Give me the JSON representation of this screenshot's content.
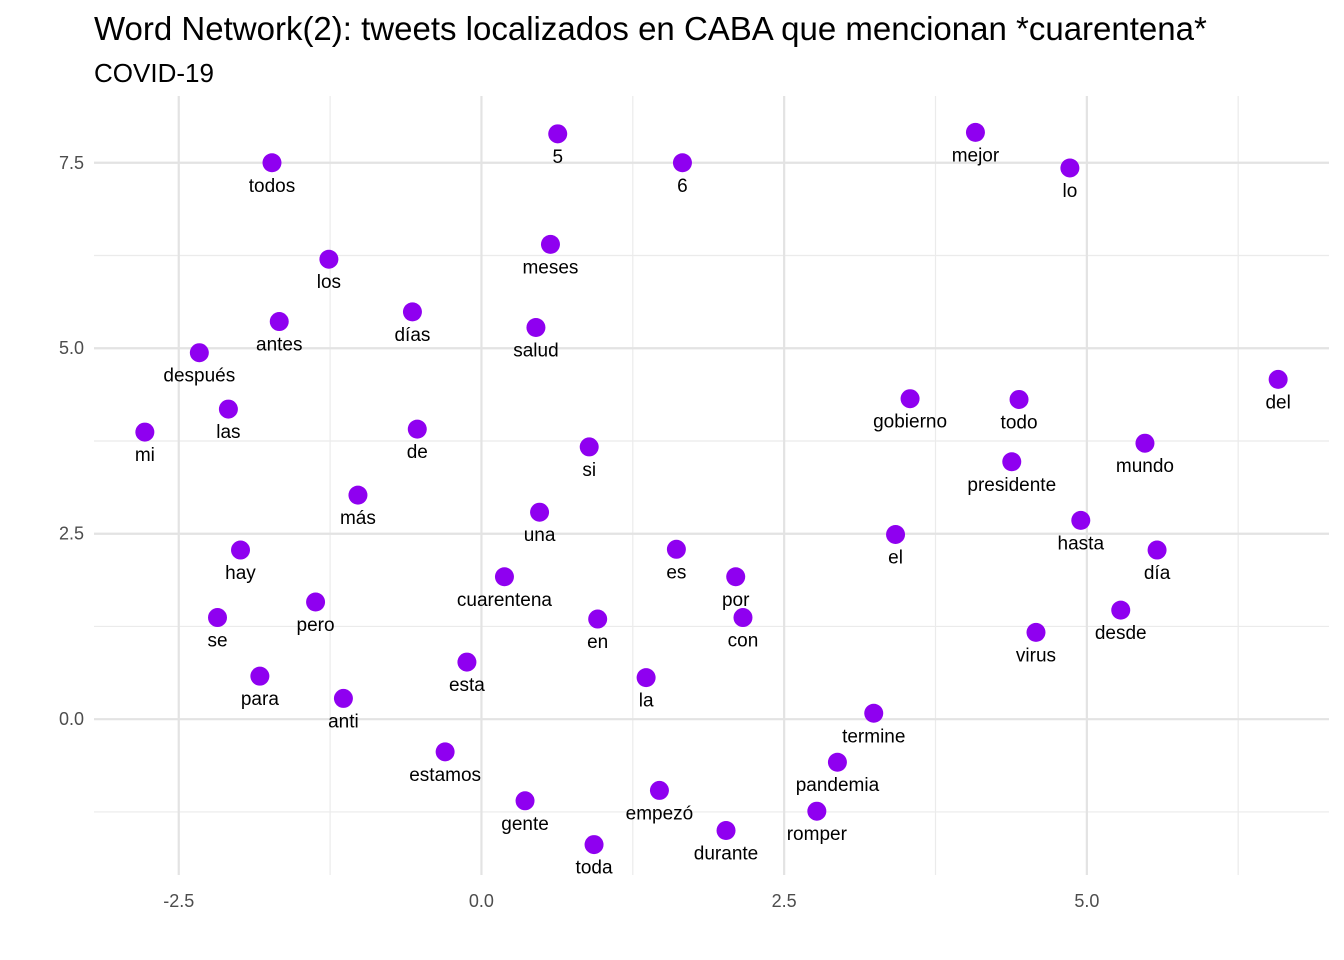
{
  "chart_data": {
    "type": "scatter",
    "title": "Word Network(2): tweets localizados en CABA que mencionan *cuarentena*",
    "subtitle": "COVID-19",
    "xlabel": "",
    "ylabel": "",
    "xlim": [
      -3.2,
      7.0
    ],
    "ylim": [
      -2.1,
      8.4
    ],
    "x_ticks": [
      -2.5,
      0.0,
      2.5,
      5.0
    ],
    "x_tick_labels": [
      "-2.5",
      "0.0",
      "2.5",
      "5.0"
    ],
    "y_ticks": [
      0.0,
      2.5,
      5.0,
      7.5
    ],
    "y_tick_labels": [
      "0.0",
      "2.5",
      "5.0",
      "7.5"
    ],
    "grid": true,
    "point_color": "#8F00F0",
    "points": [
      {
        "label": "todos",
        "x": -1.73,
        "y": 7.5
      },
      {
        "label": "5",
        "x": 0.63,
        "y": 7.89
      },
      {
        "label": "6",
        "x": 1.66,
        "y": 7.5
      },
      {
        "label": "mejor",
        "x": 4.08,
        "y": 7.91
      },
      {
        "label": "lo",
        "x": 4.86,
        "y": 7.43
      },
      {
        "label": "los",
        "x": -1.26,
        "y": 6.2
      },
      {
        "label": "meses",
        "x": 0.57,
        "y": 6.4
      },
      {
        "label": "antes",
        "x": -1.67,
        "y": 5.36
      },
      {
        "label": "días",
        "x": -0.57,
        "y": 5.49
      },
      {
        "label": "salud",
        "x": 0.45,
        "y": 5.28
      },
      {
        "label": "después",
        "x": -2.33,
        "y": 4.94
      },
      {
        "label": "las",
        "x": -2.09,
        "y": 4.18
      },
      {
        "label": "mi",
        "x": -2.78,
        "y": 3.87
      },
      {
        "label": "de",
        "x": -0.53,
        "y": 3.91
      },
      {
        "label": "si",
        "x": 0.89,
        "y": 3.67
      },
      {
        "label": "gobierno",
        "x": 3.54,
        "y": 4.32
      },
      {
        "label": "todo",
        "x": 4.44,
        "y": 4.31
      },
      {
        "label": "del",
        "x": 6.58,
        "y": 4.58
      },
      {
        "label": "mundo",
        "x": 5.48,
        "y": 3.72
      },
      {
        "label": "presidente",
        "x": 4.38,
        "y": 3.47
      },
      {
        "label": "más",
        "x": -1.02,
        "y": 3.02
      },
      {
        "label": "una",
        "x": 0.48,
        "y": 2.79
      },
      {
        "label": "el",
        "x": 3.42,
        "y": 2.49
      },
      {
        "label": "hasta",
        "x": 4.95,
        "y": 2.68
      },
      {
        "label": "hay",
        "x": -1.99,
        "y": 2.28
      },
      {
        "label": "es",
        "x": 1.61,
        "y": 2.29
      },
      {
        "label": "día",
        "x": 5.58,
        "y": 2.28
      },
      {
        "label": "cuarentena",
        "x": 0.19,
        "y": 1.92
      },
      {
        "label": "por",
        "x": 2.1,
        "y": 1.92
      },
      {
        "label": "se",
        "x": -2.18,
        "y": 1.37
      },
      {
        "label": "pero",
        "x": -1.37,
        "y": 1.58
      },
      {
        "label": "en",
        "x": 0.96,
        "y": 1.35
      },
      {
        "label": "con",
        "x": 2.16,
        "y": 1.37
      },
      {
        "label": "desde",
        "x": 5.28,
        "y": 1.47
      },
      {
        "label": "virus",
        "x": 4.58,
        "y": 1.17
      },
      {
        "label": "para",
        "x": -1.83,
        "y": 0.58
      },
      {
        "label": "esta",
        "x": -0.12,
        "y": 0.77
      },
      {
        "label": "anti",
        "x": -1.14,
        "y": 0.28
      },
      {
        "label": "la",
        "x": 1.36,
        "y": 0.56
      },
      {
        "label": "termine",
        "x": 3.24,
        "y": 0.08
      },
      {
        "label": "estamos",
        "x": -0.3,
        "y": -0.44
      },
      {
        "label": "pandemia",
        "x": 2.94,
        "y": -0.58
      },
      {
        "label": "gente",
        "x": 0.36,
        "y": -1.1
      },
      {
        "label": "empezó",
        "x": 1.47,
        "y": -0.96
      },
      {
        "label": "romper",
        "x": 2.77,
        "y": -1.24
      },
      {
        "label": "durante",
        "x": 2.02,
        "y": -1.5
      },
      {
        "label": "toda",
        "x": 0.93,
        "y": -1.69
      }
    ]
  }
}
